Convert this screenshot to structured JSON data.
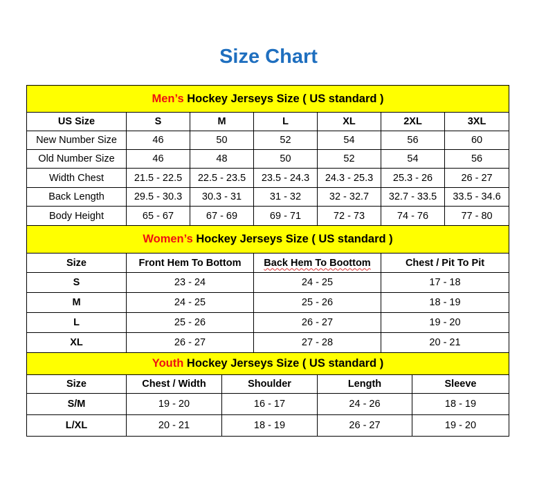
{
  "title": "Size Chart",
  "colors": {
    "title": "#1f6fbf",
    "header_bg": "#ffff00",
    "accent_red": "#ee1111"
  },
  "sections": [
    {
      "id": "men",
      "prefix": "Men’s",
      "heading": "Hockey Jerseys Size ( US standard )",
      "columns": [
        "US Size",
        "S",
        "M",
        "L",
        "XL",
        "2XL",
        "3XL"
      ],
      "rows": [
        [
          "New Number Size",
          "46",
          "50",
          "52",
          "54",
          "56",
          "60"
        ],
        [
          "Old Number Size",
          "46",
          "48",
          "50",
          "52",
          "54",
          "56"
        ],
        [
          "Width Chest",
          "21.5 - 22.5",
          "22.5 - 23.5",
          "23.5 - 24.3",
          "24.3 - 25.3",
          "25.3 - 26",
          "26 - 27"
        ],
        [
          "Back Length",
          "29.5 - 30.3",
          "30.3 - 31",
          "31 - 32",
          "32 - 32.7",
          "32.7 - 33.5",
          "33.5 - 34.6"
        ],
        [
          "Body Height",
          "65 - 67",
          "67 - 69",
          "69 - 71",
          "72 - 73",
          "74 - 76",
          "77 - 80"
        ]
      ]
    },
    {
      "id": "women",
      "prefix": "Women’s",
      "heading": "Hockey Jerseys Size ( US standard )",
      "columns": [
        "Size",
        "Front Hem To Bottom",
        "Back Hem To Boottom",
        "Chest / Pit To Pit"
      ],
      "rows": [
        [
          "S",
          "23 - 24",
          "24 - 25",
          "17 - 18"
        ],
        [
          "M",
          "24 - 25",
          "25 - 26",
          "18 - 19"
        ],
        [
          "L",
          "25 - 26",
          "26 - 27",
          "19 - 20"
        ],
        [
          "XL",
          "26 - 27",
          "27 - 28",
          "20 - 21"
        ]
      ]
    },
    {
      "id": "youth",
      "prefix": "Youth",
      "heading": "Hockey Jerseys Size ( US standard )",
      "columns": [
        "Size",
        "Chest / Width",
        "Shoulder",
        "Length",
        "Sleeve"
      ],
      "rows": [
        [
          "S/M",
          "19 - 20",
          "16 - 17",
          "24 - 26",
          "18 - 19"
        ],
        [
          "L/XL",
          "20 - 21",
          "18 - 19",
          "26 - 27",
          "19 - 20"
        ]
      ]
    }
  ]
}
